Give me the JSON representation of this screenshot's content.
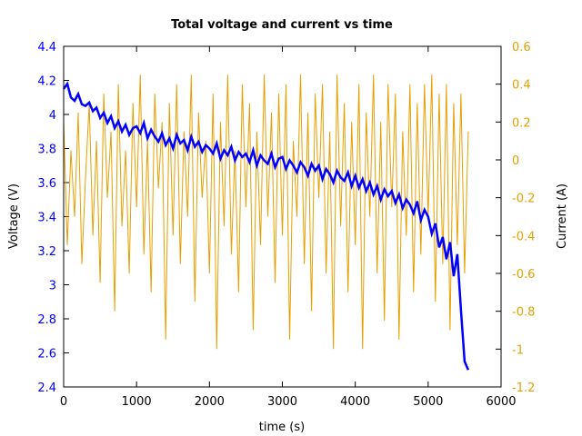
{
  "chart_data": {
    "type": "line",
    "title": "Total voltage and current vs time",
    "xlabel": "time (s)",
    "ylabel": "Voltage (V)",
    "y2label": "Current (A)",
    "xlim": [
      0,
      6000
    ],
    "ylim": [
      2.4,
      4.4
    ],
    "y2lim": [
      -1.2,
      0.6
    ],
    "xticks": [
      0,
      1000,
      2000,
      3000,
      4000,
      5000,
      6000
    ],
    "yticks": [
      "2.4",
      "2.6",
      "2.8",
      "3",
      "3.2",
      "3.4",
      "3.6",
      "3.8",
      "4",
      "4.2",
      "4.4"
    ],
    "y2ticks": [
      "-1.2",
      "-1",
      "-0.8",
      "-0.6",
      "-0.4",
      "-0.2",
      "0",
      "0.2",
      "0.4",
      "0.6"
    ],
    "grid": false,
    "x_step": 50,
    "series": [
      {
        "axis": "left",
        "color": "#0000ff",
        "values": [
          4.15,
          4.18,
          4.1,
          4.08,
          4.12,
          4.06,
          4.05,
          4.07,
          4.02,
          4.04,
          3.98,
          4.01,
          3.95,
          3.99,
          3.92,
          3.96,
          3.9,
          3.94,
          3.88,
          3.92,
          3.93,
          3.89,
          3.95,
          3.86,
          3.91,
          3.87,
          3.84,
          3.89,
          3.82,
          3.86,
          3.8,
          3.88,
          3.83,
          3.85,
          3.79,
          3.87,
          3.81,
          3.84,
          3.78,
          3.82,
          3.8,
          3.77,
          3.83,
          3.74,
          3.79,
          3.76,
          3.81,
          3.73,
          3.78,
          3.75,
          3.77,
          3.72,
          3.79,
          3.7,
          3.76,
          3.73,
          3.71,
          3.77,
          3.69,
          3.74,
          3.75,
          3.68,
          3.73,
          3.7,
          3.66,
          3.72,
          3.69,
          3.64,
          3.71,
          3.67,
          3.7,
          3.62,
          3.68,
          3.65,
          3.6,
          3.67,
          3.63,
          3.61,
          3.66,
          3.58,
          3.64,
          3.57,
          3.62,
          3.55,
          3.6,
          3.53,
          3.58,
          3.5,
          3.56,
          3.52,
          3.55,
          3.48,
          3.53,
          3.45,
          3.5,
          3.47,
          3.42,
          3.49,
          3.38,
          3.44,
          3.4,
          3.3,
          3.36,
          3.22,
          3.28,
          3.15,
          3.25,
          3.05,
          3.18,
          2.85,
          2.55,
          2.5
        ]
      },
      {
        "axis": "right",
        "color": "#e69f00",
        "values": [
          0.2,
          -0.45,
          0.05,
          -0.3,
          0.25,
          -0.55,
          -0.1,
          0.3,
          -0.4,
          0.1,
          -0.65,
          0.35,
          -0.2,
          0.15,
          -0.8,
          0.4,
          -0.35,
          0.05,
          -0.6,
          0.3,
          -0.25,
          0.45,
          -0.5,
          0.1,
          -0.7,
          0.35,
          -0.15,
          0.2,
          -0.95,
          0.3,
          -0.4,
          0.4,
          -0.55,
          0.15,
          -0.3,
          0.45,
          -0.75,
          0.25,
          -0.2,
          0.1,
          -0.6,
          0.35,
          -1.0,
          0.2,
          -0.35,
          0.45,
          -0.5,
          0.05,
          -0.7,
          0.4,
          -0.25,
          0.3,
          -0.9,
          0.15,
          -0.45,
          0.45,
          -0.3,
          0.25,
          -0.65,
          0.35,
          -0.4,
          0.4,
          -0.95,
          0.1,
          -0.3,
          0.45,
          -0.55,
          0.25,
          -0.8,
          0.35,
          -0.2,
          0.4,
          -0.6,
          0.15,
          -1.0,
          0.45,
          -0.35,
          0.3,
          -0.7,
          0.2,
          -0.45,
          0.4,
          -1.0,
          0.25,
          -0.3,
          0.45,
          -0.6,
          0.2,
          -0.85,
          0.4,
          -0.25,
          0.35,
          -0.95,
          0.15,
          -0.4,
          0.4,
          -0.7,
          0.3,
          -0.5,
          0.4,
          -0.3,
          0.45,
          -0.75,
          0.35,
          -0.55,
          0.4,
          -0.9,
          0.3,
          -0.45,
          0.35,
          -0.6,
          0.15
        ]
      }
    ]
  }
}
